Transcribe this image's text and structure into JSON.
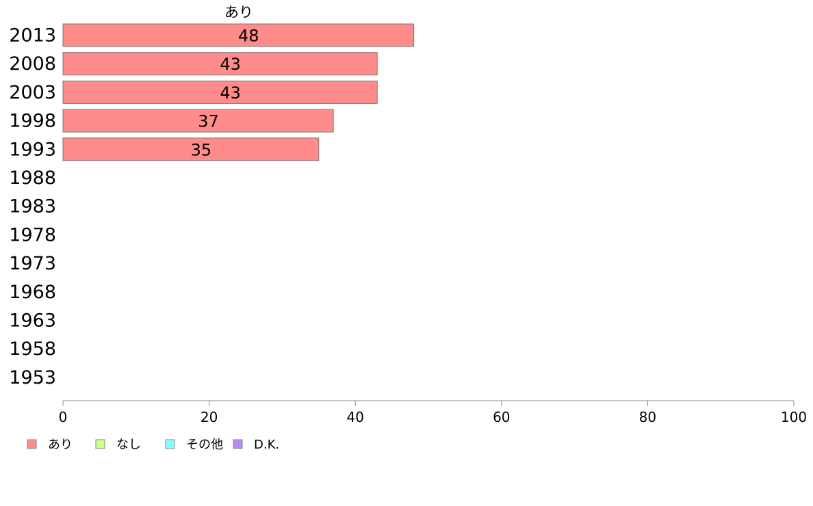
{
  "chart_data": {
    "type": "bar",
    "orientation": "horizontal",
    "categories": [
      "2013",
      "2008",
      "2003",
      "1998",
      "1993",
      "1988",
      "1983",
      "1978",
      "1973",
      "1968",
      "1963",
      "1958",
      "1953"
    ],
    "series": [
      {
        "name": "あり",
        "color": "#ff8b8b",
        "values": [
          48,
          43,
          43,
          37,
          35,
          null,
          null,
          null,
          null,
          null,
          null,
          null,
          null
        ]
      }
    ],
    "series_label": "あり",
    "xlim": [
      0,
      100
    ],
    "xticks": [
      0,
      20,
      40,
      60,
      80,
      100
    ],
    "grid": false,
    "legend_position": "bottom-left"
  },
  "legend": [
    {
      "label": "あり",
      "color": "#ff8b8b"
    },
    {
      "label": "なし",
      "color": "#ccff88"
    },
    {
      "label": "その他",
      "color": "#88ffff"
    },
    {
      "label": "D.K.",
      "color": "#bb88ff"
    }
  ]
}
